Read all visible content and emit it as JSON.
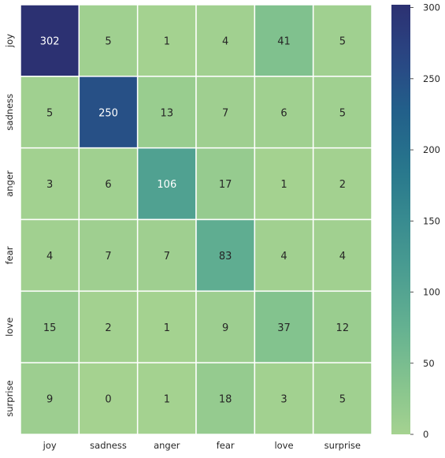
{
  "chart_data": {
    "type": "heatmap",
    "title": "",
    "xlabel": "",
    "ylabel": "",
    "x_categories": [
      "joy",
      "sadness",
      "anger",
      "fear",
      "love",
      "surprise"
    ],
    "y_categories": [
      "joy",
      "sadness",
      "anger",
      "fear",
      "love",
      "surprise"
    ],
    "values": [
      [
        302,
        5,
        1,
        4,
        41,
        5
      ],
      [
        5,
        250,
        13,
        7,
        6,
        5
      ],
      [
        3,
        6,
        106,
        17,
        1,
        2
      ],
      [
        4,
        7,
        7,
        83,
        4,
        4
      ],
      [
        15,
        2,
        1,
        9,
        37,
        12
      ],
      [
        9,
        0,
        1,
        18,
        3,
        5
      ]
    ],
    "annotate": true,
    "colormap": "crest",
    "color_range": [
      0,
      302
    ],
    "colorbar": {
      "ticks": [
        0,
        50,
        100,
        150,
        200,
        250,
        300
      ]
    },
    "cell_separators": true,
    "colors": {
      "low": "#a5d290",
      "high": "#2c3172",
      "annotation_light_bg": "#262626",
      "annotation_dark_bg": "#ffffff"
    }
  }
}
